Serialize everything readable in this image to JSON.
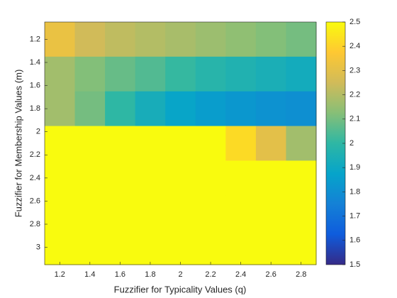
{
  "chart_data": {
    "type": "heatmap",
    "xlabel": "Fuzzifier for Typicality Values (q)",
    "ylabel": "Fuzzifier for Membership Values (m)",
    "x": [
      1.2,
      1.4,
      1.6,
      1.8,
      2.0,
      2.2,
      2.4,
      2.6,
      2.8
    ],
    "y": [
      1.2,
      1.5,
      1.8,
      2.1,
      2.4,
      2.7,
      3.0
    ],
    "values": [
      [
        2.32,
        2.25,
        2.22,
        2.2,
        2.18,
        2.16,
        2.14,
        2.12,
        2.1
      ],
      [
        2.17,
        2.12,
        2.08,
        2.05,
        2.01,
        1.98,
        1.96,
        1.94,
        1.92
      ],
      [
        2.17,
        2.1,
        2.0,
        1.93,
        1.88,
        1.85,
        1.83,
        1.81,
        1.8
      ],
      [
        2.5,
        2.5,
        2.5,
        2.5,
        2.5,
        2.5,
        2.42,
        2.3,
        2.17
      ],
      [
        2.5,
        2.5,
        2.5,
        2.5,
        2.5,
        2.5,
        2.5,
        2.5,
        2.5
      ],
      [
        2.5,
        2.5,
        2.5,
        2.5,
        2.5,
        2.5,
        2.5,
        2.5,
        2.5
      ],
      [
        2.5,
        2.5,
        2.5,
        2.5,
        2.5,
        2.5,
        2.5,
        2.5,
        2.5
      ]
    ],
    "xlim": [
      1.1,
      2.9
    ],
    "ylim": [
      1.05,
      3.15
    ],
    "y_reversed": true,
    "xticks": [
      1.2,
      1.4,
      1.6,
      1.8,
      2,
      2.2,
      2.4,
      2.6,
      2.8
    ],
    "yticks": [
      1.2,
      1.4,
      1.6,
      1.8,
      2,
      2.2,
      2.4,
      2.6,
      2.8,
      3
    ],
    "clim": [
      1.5,
      2.5
    ],
    "cticks": [
      1.5,
      1.6,
      1.7,
      1.8,
      1.9,
      2,
      2.1,
      2.2,
      2.3,
      2.4,
      2.5
    ],
    "colormap": [
      "#352a87",
      "#0f5cdd",
      "#1481d6",
      "#06a4ca",
      "#2eb7a4",
      "#87bf77",
      "#d1bb59",
      "#fec832",
      "#f9fb0e"
    ]
  }
}
